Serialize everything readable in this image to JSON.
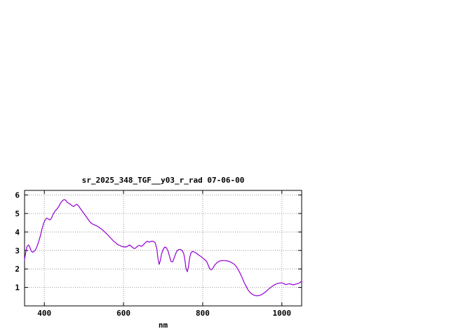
{
  "page": {
    "background_color": "#ffffff"
  },
  "chart_data": {
    "type": "line",
    "title": "sr_2025_348_TGF__y03_r_rad 07-06-00",
    "xlabel": "nm",
    "ylabel": "",
    "xlim": [
      350,
      1050
    ],
    "ylim": [
      0,
      6.25
    ],
    "x_ticks": [
      400,
      600,
      800,
      1000
    ],
    "y_ticks": [
      1,
      2,
      3,
      4,
      5,
      6
    ],
    "grid": true,
    "legend": "none",
    "line_color": "#9400d3",
    "grid_color": "#999999",
    "border_color": "#000000",
    "points": [
      [
        350,
        2.5
      ],
      [
        353,
        2.9
      ],
      [
        356,
        3.2
      ],
      [
        360,
        3.3
      ],
      [
        363,
        3.2
      ],
      [
        366,
        3.0
      ],
      [
        370,
        2.9
      ],
      [
        374,
        2.95
      ],
      [
        378,
        3.05
      ],
      [
        382,
        3.25
      ],
      [
        386,
        3.5
      ],
      [
        390,
        3.8
      ],
      [
        394,
        4.15
      ],
      [
        398,
        4.45
      ],
      [
        402,
        4.65
      ],
      [
        406,
        4.75
      ],
      [
        410,
        4.7
      ],
      [
        414,
        4.65
      ],
      [
        418,
        4.75
      ],
      [
        422,
        4.95
      ],
      [
        426,
        5.1
      ],
      [
        430,
        5.2
      ],
      [
        434,
        5.3
      ],
      [
        438,
        5.45
      ],
      [
        442,
        5.6
      ],
      [
        446,
        5.7
      ],
      [
        450,
        5.75
      ],
      [
        454,
        5.72
      ],
      [
        458,
        5.6
      ],
      [
        462,
        5.55
      ],
      [
        466,
        5.5
      ],
      [
        470,
        5.42
      ],
      [
        474,
        5.38
      ],
      [
        478,
        5.45
      ],
      [
        482,
        5.5
      ],
      [
        486,
        5.42
      ],
      [
        490,
        5.3
      ],
      [
        495,
        5.15
      ],
      [
        500,
        5.0
      ],
      [
        505,
        4.85
      ],
      [
        510,
        4.7
      ],
      [
        515,
        4.55
      ],
      [
        520,
        4.45
      ],
      [
        525,
        4.4
      ],
      [
        530,
        4.35
      ],
      [
        535,
        4.3
      ],
      [
        540,
        4.22
      ],
      [
        545,
        4.15
      ],
      [
        550,
        4.05
      ],
      [
        555,
        3.95
      ],
      [
        560,
        3.85
      ],
      [
        565,
        3.72
      ],
      [
        570,
        3.62
      ],
      [
        575,
        3.5
      ],
      [
        580,
        3.42
      ],
      [
        585,
        3.32
      ],
      [
        590,
        3.28
      ],
      [
        595,
        3.22
      ],
      [
        600,
        3.2
      ],
      [
        605,
        3.18
      ],
      [
        610,
        3.22
      ],
      [
        615,
        3.3
      ],
      [
        620,
        3.22
      ],
      [
        625,
        3.12
      ],
      [
        630,
        3.12
      ],
      [
        635,
        3.22
      ],
      [
        640,
        3.28
      ],
      [
        645,
        3.22
      ],
      [
        650,
        3.3
      ],
      [
        655,
        3.42
      ],
      [
        660,
        3.5
      ],
      [
        665,
        3.45
      ],
      [
        670,
        3.5
      ],
      [
        675,
        3.5
      ],
      [
        680,
        3.42
      ],
      [
        684,
        3.1
      ],
      [
        687,
        2.55
      ],
      [
        690,
        2.25
      ],
      [
        693,
        2.45
      ],
      [
        696,
        2.8
      ],
      [
        700,
        3.05
      ],
      [
        704,
        3.18
      ],
      [
        708,
        3.15
      ],
      [
        712,
        3.0
      ],
      [
        716,
        2.7
      ],
      [
        720,
        2.4
      ],
      [
        724,
        2.38
      ],
      [
        728,
        2.6
      ],
      [
        732,
        2.85
      ],
      [
        736,
        3.0
      ],
      [
        740,
        3.05
      ],
      [
        744,
        3.05
      ],
      [
        748,
        3.0
      ],
      [
        752,
        2.85
      ],
      [
        755,
        2.5
      ],
      [
        758,
        2.0
      ],
      [
        761,
        1.85
      ],
      [
        764,
        2.1
      ],
      [
        767,
        2.6
      ],
      [
        770,
        2.85
      ],
      [
        774,
        2.95
      ],
      [
        778,
        2.92
      ],
      [
        782,
        2.88
      ],
      [
        786,
        2.82
      ],
      [
        790,
        2.75
      ],
      [
        795,
        2.68
      ],
      [
        800,
        2.6
      ],
      [
        805,
        2.5
      ],
      [
        810,
        2.4
      ],
      [
        814,
        2.2
      ],
      [
        818,
        2.0
      ],
      [
        822,
        1.95
      ],
      [
        826,
        2.05
      ],
      [
        830,
        2.2
      ],
      [
        835,
        2.32
      ],
      [
        840,
        2.4
      ],
      [
        845,
        2.44
      ],
      [
        850,
        2.45
      ],
      [
        855,
        2.45
      ],
      [
        860,
        2.44
      ],
      [
        865,
        2.42
      ],
      [
        870,
        2.38
      ],
      [
        875,
        2.32
      ],
      [
        880,
        2.25
      ],
      [
        885,
        2.12
      ],
      [
        890,
        1.95
      ],
      [
        895,
        1.75
      ],
      [
        900,
        1.5
      ],
      [
        905,
        1.25
      ],
      [
        910,
        1.05
      ],
      [
        915,
        0.85
      ],
      [
        920,
        0.72
      ],
      [
        925,
        0.63
      ],
      [
        930,
        0.58
      ],
      [
        935,
        0.55
      ],
      [
        940,
        0.55
      ],
      [
        945,
        0.58
      ],
      [
        950,
        0.63
      ],
      [
        955,
        0.7
      ],
      [
        960,
        0.78
      ],
      [
        965,
        0.88
      ],
      [
        970,
        0.97
      ],
      [
        975,
        1.05
      ],
      [
        980,
        1.12
      ],
      [
        985,
        1.18
      ],
      [
        990,
        1.22
      ],
      [
        995,
        1.24
      ],
      [
        1000,
        1.25
      ],
      [
        1005,
        1.2
      ],
      [
        1010,
        1.15
      ],
      [
        1015,
        1.18
      ],
      [
        1020,
        1.2
      ],
      [
        1025,
        1.16
      ],
      [
        1030,
        1.14
      ],
      [
        1035,
        1.18
      ],
      [
        1040,
        1.2
      ],
      [
        1045,
        1.25
      ],
      [
        1050,
        1.35
      ]
    ]
  }
}
